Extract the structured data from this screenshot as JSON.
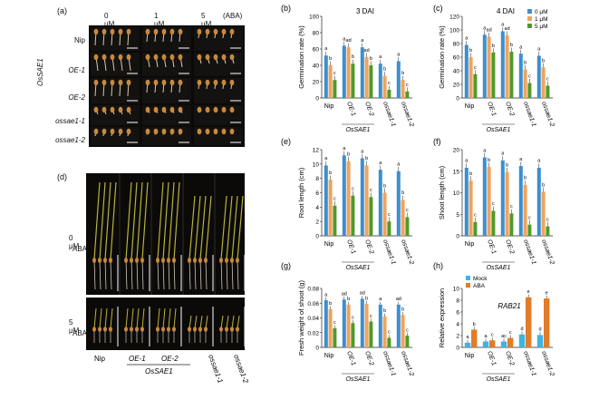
{
  "panel_labels": [
    "(a)",
    "(b)",
    "(c)",
    "(d)",
    "(e)",
    "(f)",
    "(g)",
    "(h)"
  ],
  "panel_a": {
    "columns": [
      "0 μM",
      "1 μM",
      "5 μM",
      "(ABA)"
    ],
    "rows": [
      "Nip",
      "OE-1",
      "OE-2",
      "ossae1-1",
      "ossae1-2"
    ],
    "group": "OsSAE1"
  },
  "panel_d": {
    "conditions": [
      "0 μM\nABA",
      "5 μM\nABA"
    ],
    "cond1_l1": "0 μM",
    "cond1_l2": "ABA",
    "cond2_l1": "5 μM",
    "cond2_l2": "ABA",
    "genotypes": [
      "Nip",
      "OE-1",
      "OE-2",
      "ossae1-1",
      "ossae1-2"
    ],
    "group": "OsSAE1"
  },
  "legend_aba": [
    "0 μM",
    "1 μM",
    "5 μM"
  ],
  "legend_rab": [
    "Mock",
    "ABA"
  ],
  "colors": {
    "c0": "#3b8fd0",
    "c1": "#f0a35a",
    "c2": "#4e9a2a",
    "mock": "#3fb3e0",
    "aba": "#e07c2a"
  },
  "genotype_ticks": [
    "Nip",
    "OE-1",
    "OE-2",
    "ossae1-1",
    "ossae1-2"
  ],
  "group_label": "OsSAE1",
  "chart_data": [
    {
      "id": "b",
      "type": "bar",
      "title": "3 DAI",
      "ylabel": "Germination rate (%)",
      "ylim": [
        0,
        100
      ],
      "yticks": [
        0,
        20,
        40,
        60,
        80,
        100
      ],
      "categories": [
        "Nip",
        "OE-1",
        "OE-2",
        "ossae1-1",
        "ossae1-2"
      ],
      "series": [
        {
          "name": "0 μM",
          "values": [
            52,
            64,
            62,
            42,
            45
          ]
        },
        {
          "name": "1 μM",
          "values": [
            40,
            62,
            50,
            27,
            22
          ]
        },
        {
          "name": "5 μM",
          "values": [
            22,
            42,
            40,
            10,
            8
          ]
        }
      ],
      "letters": [
        [
          "a",
          "b",
          "c"
        ],
        [
          "a",
          "ad",
          "b"
        ],
        [
          "a",
          "ad",
          "b"
        ],
        [
          "a",
          "b",
          "c"
        ],
        [
          "a",
          "b",
          "c"
        ]
      ]
    },
    {
      "id": "c",
      "type": "bar",
      "title": "4 DAI",
      "ylabel": "Germination rate (%)",
      "ylim": [
        0,
        120
      ],
      "yticks": [
        0,
        20,
        40,
        60,
        80,
        100,
        120
      ],
      "categories": [
        "Nip",
        "OE-1",
        "OE-2",
        "ossae1-1",
        "ossae1-2"
      ],
      "series": [
        {
          "name": "0 μM",
          "values": [
            78,
            93,
            98,
            65,
            62
          ]
        },
        {
          "name": "1 μM",
          "values": [
            60,
            90,
            92,
            42,
            45
          ]
        },
        {
          "name": "5 μM",
          "values": [
            35,
            67,
            68,
            22,
            18
          ]
        }
      ],
      "letters": [
        [
          "a",
          "b",
          "c"
        ],
        [
          "a",
          "ad",
          "b"
        ],
        [
          "a",
          "ad",
          "b"
        ],
        [
          "a",
          "b",
          "c"
        ],
        [
          "a",
          "b",
          "c"
        ]
      ]
    },
    {
      "id": "e",
      "type": "bar",
      "ylabel": "Root length (cm)",
      "ylim": [
        0,
        12
      ],
      "yticks": [
        0,
        2,
        4,
        6,
        8,
        10,
        12
      ],
      "categories": [
        "Nip",
        "OE-1",
        "OE-2",
        "ossae1-1",
        "ossae1-2"
      ],
      "series": [
        {
          "name": "0 μM",
          "values": [
            9.8,
            11.2,
            10.8,
            9.2,
            9.0
          ]
        },
        {
          "name": "1 μM",
          "values": [
            7.8,
            10.4,
            9.8,
            6.0,
            5.0
          ]
        },
        {
          "name": "5 μM",
          "values": [
            4.2,
            5.6,
            5.4,
            2.0,
            2.6
          ]
        }
      ],
      "letters": [
        [
          "a",
          "b",
          "c"
        ],
        [
          "a",
          "b",
          "c"
        ],
        [
          "a",
          "b",
          "c"
        ],
        [
          "a",
          "b",
          "c"
        ],
        [
          "a",
          "b",
          "c"
        ]
      ]
    },
    {
      "id": "f",
      "type": "bar",
      "ylabel": "Shoot length (cm)",
      "ylim": [
        0,
        20
      ],
      "yticks": [
        0,
        5,
        10,
        15,
        20
      ],
      "categories": [
        "Nip",
        "OE-1",
        "OE-2",
        "ossae1-1",
        "ossae1-2"
      ],
      "series": [
        {
          "name": "0 μM",
          "values": [
            15.8,
            18.2,
            17.5,
            16.2,
            15.8
          ]
        },
        {
          "name": "1 μM",
          "values": [
            12.8,
            16.0,
            14.8,
            11.8,
            10.2
          ]
        },
        {
          "name": "5 μM",
          "values": [
            3.2,
            5.8,
            5.2,
            2.6,
            2.2
          ]
        }
      ],
      "letters": [
        [
          "a",
          "b",
          "c"
        ],
        [
          "a",
          "b",
          "c"
        ],
        [
          "a",
          "b",
          "c"
        ],
        [
          "a",
          "b",
          "c"
        ],
        [
          "a",
          "b",
          "c"
        ]
      ]
    },
    {
      "id": "g",
      "type": "bar",
      "ylabel": "Fresh weight of shoot (g)",
      "ylim": [
        0,
        0.08
      ],
      "yticks": [
        0,
        0.02,
        0.04,
        0.06,
        0.08
      ],
      "categories": [
        "Nip",
        "OE-1",
        "OE-2",
        "ossae1-1",
        "ossae1-2"
      ],
      "series": [
        {
          "name": "0 μM",
          "values": [
            0.064,
            0.065,
            0.066,
            0.058,
            0.058
          ]
        },
        {
          "name": "1 μM",
          "values": [
            0.052,
            0.058,
            0.059,
            0.042,
            0.044
          ]
        },
        {
          "name": "5 μM",
          "values": [
            0.026,
            0.033,
            0.035,
            0.013,
            0.016
          ]
        }
      ],
      "letters": [
        [
          "a",
          "b",
          "c"
        ],
        [
          "ad",
          "b",
          "c"
        ],
        [
          "ad",
          "b",
          "c"
        ],
        [
          "a",
          "b",
          "c"
        ],
        [
          "ad",
          "b",
          "c"
        ]
      ]
    },
    {
      "id": "h",
      "type": "bar",
      "title": "RAB21",
      "ylabel": "Relative expression",
      "ylim": [
        0,
        10
      ],
      "yticks": [
        0,
        2,
        4,
        6,
        8,
        10
      ],
      "categories": [
        "Nip",
        "OE-1",
        "OE-2",
        "ossae1-1",
        "ossae1-2"
      ],
      "series": [
        {
          "name": "Mock",
          "values": [
            0.8,
            1.0,
            1.0,
            2.2,
            2.1
          ]
        },
        {
          "name": "ABA",
          "values": [
            3.0,
            1.2,
            1.6,
            8.5,
            8.3
          ]
        }
      ],
      "letters": [
        [
          "a",
          "b"
        ],
        [
          "a",
          "c"
        ],
        [
          "ac",
          "c"
        ],
        [
          "d",
          "e"
        ],
        [
          "d",
          "e"
        ]
      ]
    }
  ]
}
